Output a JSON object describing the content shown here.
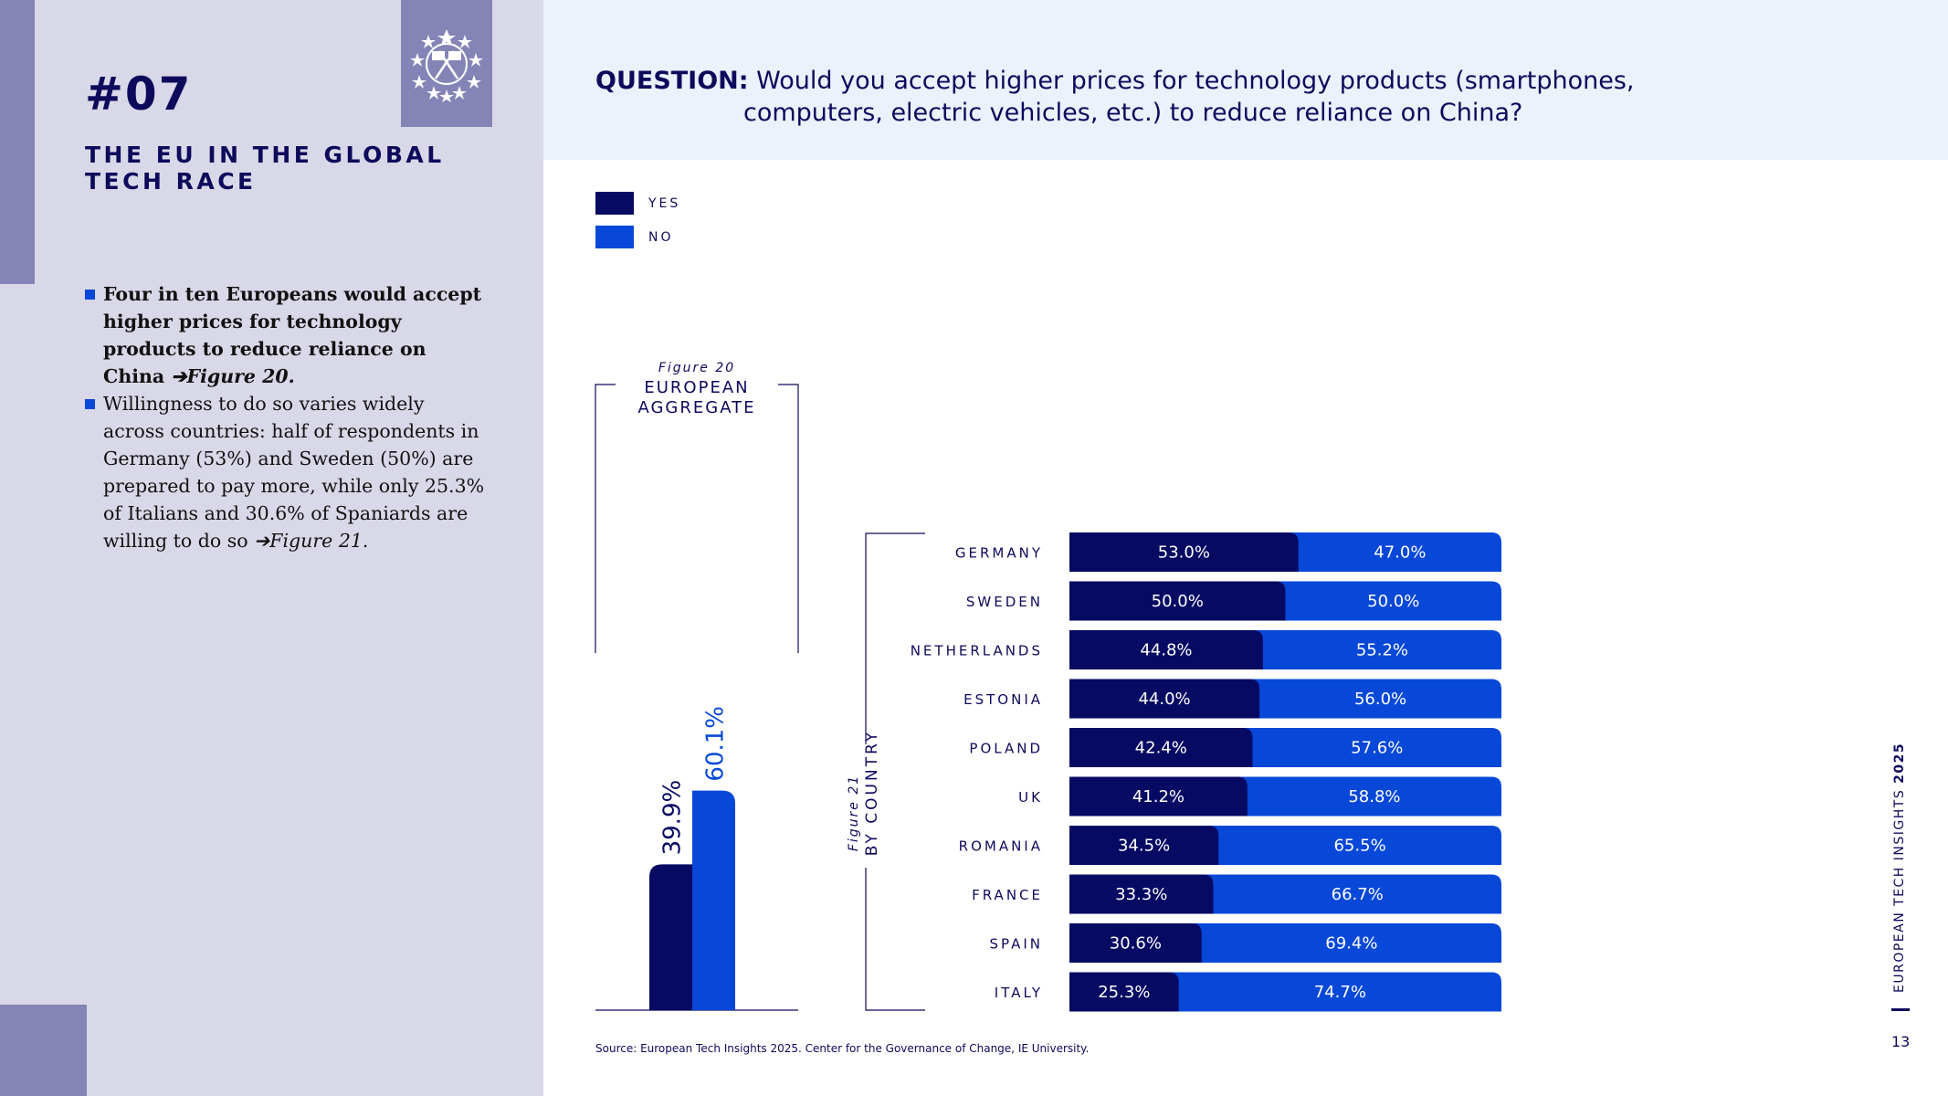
{
  "colors": {
    "yes": "#070a63",
    "no": "#0848d8",
    "panel": "#d9d8e8",
    "accent": "#8584b6",
    "band": "#ecf1fc"
  },
  "sidebar": {
    "section_number": "#07",
    "section_title": "THE EU IN THE GLOBAL TECH RACE",
    "logo_icon": "stars-flags-emblem-icon",
    "bullets": [
      {
        "text": "Four in ten Europeans would accept higher prices for technology products to reduce reliance on China",
        "ref": "Figure 20."
      },
      {
        "text": "Willingness to do so varies widely across countries: half of respondents in Germany (53%) and Sweden (50%) are prepared to pay more, while only 25.3% of Italians and 30.6% of Spaniards are willing to do so",
        "ref": "Figure 21."
      }
    ]
  },
  "question": {
    "label": "QUESTION:",
    "line1": "Would you accept higher prices for technology products (smartphones,",
    "line2": "computers, electric vehicles, etc.) to reduce reliance on China?"
  },
  "legend": [
    {
      "label": "YES",
      "color": "#070a63"
    },
    {
      "label": "NO",
      "color": "#0848d8"
    }
  ],
  "chart_data": [
    {
      "type": "bar",
      "figure_label": "Figure 20",
      "title": "EUROPEAN AGGREGATE",
      "categories": [
        "YES",
        "NO"
      ],
      "values": [
        39.9,
        60.1
      ],
      "value_labels": [
        "39.9%",
        "60.1%"
      ],
      "unit": "%"
    },
    {
      "type": "bar",
      "stacked": true,
      "orientation": "horizontal",
      "figure_label": "Figure 21",
      "title": "BY COUNTRY",
      "categories": [
        "GERMANY",
        "SWEDEN",
        "NETHERLANDS",
        "ESTONIA",
        "POLAND",
        "UK",
        "ROMANIA",
        "FRANCE",
        "SPAIN",
        "ITALY"
      ],
      "series": [
        {
          "name": "YES",
          "values": [
            53.0,
            50.0,
            44.8,
            44.0,
            42.4,
            41.2,
            34.5,
            33.3,
            30.6,
            25.3
          ]
        },
        {
          "name": "NO",
          "values": [
            47.0,
            50.0,
            55.2,
            56.0,
            57.6,
            58.8,
            65.5,
            66.7,
            69.4,
            74.7
          ]
        }
      ],
      "unit": "%"
    }
  ],
  "footer": {
    "source": "Source: European Tech Insights 2025. Center for the Governance of Change, IE University.",
    "publication": "EUROPEAN TECH INSIGHTS",
    "year": "2025",
    "page_number": "13"
  }
}
